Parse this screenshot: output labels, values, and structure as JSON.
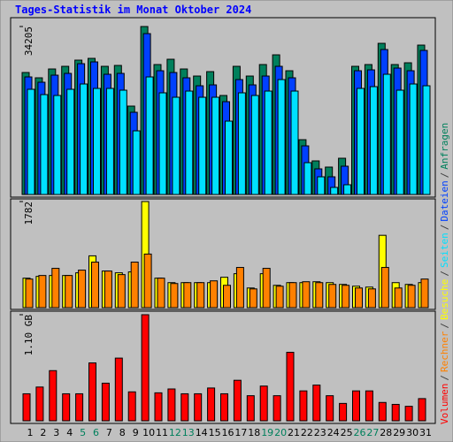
{
  "legend_separator": "/",
  "chart_data": [
    {
      "type": "bar",
      "title": "Tages-Statistik im Monat Oktober 2024",
      "ylim": [
        0,
        34205
      ],
      "yticks": [
        34205
      ],
      "series": [
        {
          "name": "Anfragen",
          "color": "#00805c",
          "values": [
            24840,
            23760,
            25560,
            26100,
            27360,
            27720,
            26100,
            26280,
            18000,
            34205,
            26460,
            27540,
            25560,
            24120,
            25020,
            20160,
            26100,
            24120,
            26460,
            28440,
            25200,
            11160,
            6840,
            5580,
            7380,
            26100,
            26460,
            30780,
            26460,
            26820,
            30420
          ]
        },
        {
          "name": "Dateien",
          "color": "#0040ff",
          "values": [
            23940,
            22860,
            24300,
            24660,
            26640,
            27000,
            24480,
            24660,
            16740,
            32760,
            25200,
            24840,
            23760,
            22140,
            22320,
            18900,
            23400,
            22320,
            24120,
            26100,
            23760,
            9900,
            5220,
            3600,
            5760,
            25200,
            25380,
            29520,
            25740,
            25200,
            29340
          ]
        },
        {
          "name": "Seiten",
          "color": "#00e0ff",
          "values": [
            21420,
            20340,
            20160,
            21420,
            22500,
            21600,
            21600,
            21240,
            12960,
            23940,
            20700,
            19800,
            21060,
            19800,
            19800,
            14940,
            20700,
            20160,
            21060,
            23400,
            21060,
            6480,
            3600,
            1440,
            1980,
            21600,
            21960,
            24480,
            21240,
            22500,
            22140
          ]
        }
      ]
    },
    {
      "type": "bar",
      "ylim": [
        0,
        1782
      ],
      "yticks": [
        1782
      ],
      "series": [
        {
          "name": "Besuche",
          "color": "#ffff00",
          "values": [
            495,
            525,
            540,
            540,
            585,
            870,
            615,
            585,
            600,
            1782,
            495,
            420,
            420,
            420,
            420,
            510,
            570,
            330,
            570,
            375,
            420,
            420,
            435,
            420,
            390,
            360,
            345,
            1215,
            420,
            390,
            420
          ]
        },
        {
          "name": "Rechner",
          "color": "#ff8000",
          "values": [
            480,
            540,
            660,
            540,
            630,
            765,
            615,
            555,
            765,
            900,
            495,
            405,
            420,
            420,
            450,
            375,
            675,
            315,
            660,
            360,
            420,
            435,
            420,
            390,
            375,
            330,
            315,
            675,
            330,
            375,
            480
          ]
        }
      ]
    },
    {
      "type": "bar",
      "ylim": [
        0,
        1.1
      ],
      "yticks": [
        {
          "value": 1.1,
          "label": "1.10 GB"
        }
      ],
      "categories": [
        "1",
        "2",
        "3",
        "4",
        "5",
        "6",
        "7",
        "8",
        "9",
        "10",
        "11",
        "12",
        "13",
        "14",
        "15",
        "16",
        "17",
        "18",
        "19",
        "20",
        "21",
        "22",
        "23",
        "24",
        "25",
        "26",
        "27",
        "28",
        "29",
        "30",
        "31"
      ],
      "category_label_colors": [
        "#000000",
        "#000000",
        "#000000",
        "#000000",
        "#00805c",
        "#00805c",
        "#000000",
        "#000000",
        "#000000",
        "#000000",
        "#000000",
        "#00805c",
        "#00805c",
        "#000000",
        "#000000",
        "#000000",
        "#000000",
        "#000000",
        "#00805c",
        "#00805c",
        "#000000",
        "#000000",
        "#000000",
        "#000000",
        "#000000",
        "#00805c",
        "#00805c",
        "#000000",
        "#000000",
        "#000000",
        "#000000"
      ],
      "series": [
        {
          "name": "Volumen",
          "color": "#ff0000",
          "values": [
            0.28,
            0.35,
            0.52,
            0.28,
            0.28,
            0.6,
            0.39,
            0.65,
            0.3,
            1.1,
            0.29,
            0.33,
            0.28,
            0.28,
            0.34,
            0.28,
            0.42,
            0.26,
            0.36,
            0.26,
            0.71,
            0.31,
            0.37,
            0.26,
            0.18,
            0.31,
            0.31,
            0.19,
            0.17,
            0.15,
            0.23
          ]
        }
      ]
    }
  ]
}
